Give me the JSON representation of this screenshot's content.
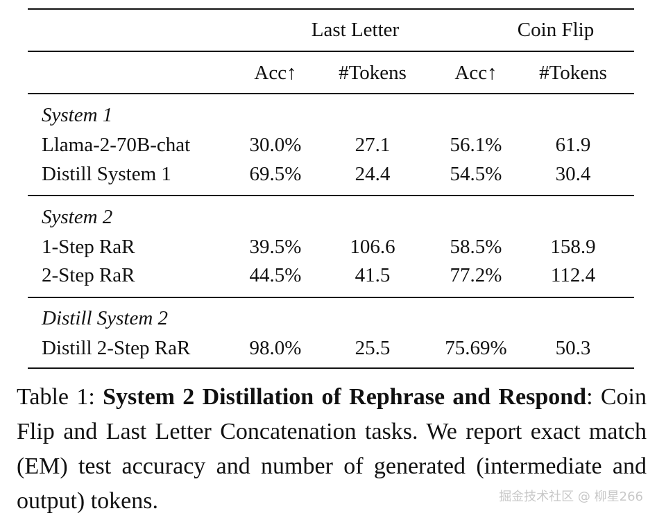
{
  "table": {
    "group_headers": [
      "Last Letter",
      "Coin Flip"
    ],
    "sub_headers": [
      "Acc↑",
      "#Tokens",
      "Acc↑",
      "#Tokens"
    ],
    "sections": [
      {
        "title": "System 1",
        "rows": [
          {
            "method": "Llama-2-70B-chat",
            "values": [
              "30.0%",
              "27.1",
              "56.1%",
              "61.9"
            ]
          },
          {
            "method": "Distill System 1",
            "values": [
              "69.5%",
              "24.4",
              "54.5%",
              "30.4"
            ]
          }
        ]
      },
      {
        "title": "System 2",
        "rows": [
          {
            "method": "1-Step RaR",
            "values": [
              "39.5%",
              "106.6",
              "58.5%",
              "158.9"
            ]
          },
          {
            "method": "2-Step RaR",
            "values": [
              "44.5%",
              "41.5",
              "77.2%",
              "112.4"
            ]
          }
        ]
      },
      {
        "title": "Distill System 2",
        "rows": [
          {
            "method": "Distill 2-Step RaR",
            "values": [
              "98.0%",
              "25.5",
              "75.69%",
              "50.3"
            ]
          }
        ]
      }
    ]
  },
  "caption": {
    "label": "Table 1: ",
    "bold": "System 2 Distillation of Rephrase and Respond",
    "rest": ": Coin Flip and Last Letter Concatenation tasks. We report exact match (EM) test accuracy and number of generated (intermediate and output) tokens."
  },
  "watermark": "掘金技术社区 @ 柳星266"
}
